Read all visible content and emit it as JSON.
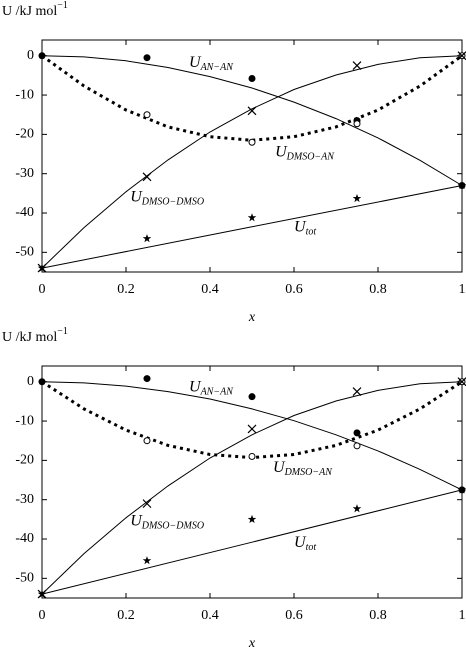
{
  "chart_data": [
    {
      "type": "scatter",
      "ylabel": "U /kJ mol",
      "ylabel_superscript": "−1",
      "xlabel": "x",
      "xlim": [
        0,
        1
      ],
      "ylim": [
        -55,
        4
      ],
      "xticks": [
        0,
        0.2,
        0.4,
        0.6,
        0.8,
        1
      ],
      "yticks": [
        0,
        -10,
        -20,
        -30,
        -40,
        -50
      ],
      "series": [
        {
          "name": "U",
          "subscript": "AN−AN",
          "marker": "filled-circle",
          "line": "solid",
          "color": "#000000",
          "x": [
            0,
            0.25,
            0.5,
            0.75,
            1
          ],
          "values": [
            0,
            -0.5,
            -5.8,
            -16.5,
            -33
          ],
          "fit_x": [
            0,
            0.1,
            0.2,
            0.3,
            0.4,
            0.5,
            0.6,
            0.7,
            0.8,
            0.9,
            1
          ],
          "fit_values": [
            0,
            -0.3,
            -1.3,
            -3,
            -5.3,
            -8.2,
            -11.8,
            -16,
            -20.9,
            -26.6,
            -33
          ]
        },
        {
          "name": "U",
          "subscript": "DMSO−AN",
          "marker": "open-circle",
          "line": "dotted",
          "color": "#000000",
          "x": [
            0.25,
            0.5,
            0.75,
            1
          ],
          "values": [
            -15,
            -22,
            -17.3,
            0
          ],
          "fit_x": [
            0,
            0.1,
            0.2,
            0.3,
            0.4,
            0.5,
            0.6,
            0.7,
            0.8,
            0.9,
            1
          ],
          "fit_values": [
            0,
            -7.7,
            -13.8,
            -18.1,
            -20.6,
            -21.5,
            -20.6,
            -18.1,
            -13.8,
            -7.7,
            0
          ]
        },
        {
          "name": "U",
          "subscript": "DMSO−DMSO",
          "marker": "cross",
          "line": "solid",
          "color": "#000000",
          "x": [
            0,
            0.25,
            0.5,
            0.75,
            1
          ],
          "values": [
            -54,
            -30.8,
            -14,
            -2.5,
            0
          ],
          "fit_x": [
            0,
            0.1,
            0.2,
            0.3,
            0.4,
            0.5,
            0.6,
            0.7,
            0.8,
            0.9,
            1
          ],
          "fit_values": [
            -54,
            -43.7,
            -34.6,
            -26.5,
            -19.4,
            -13.5,
            -8.6,
            -4.9,
            -2.2,
            -0.5,
            0
          ]
        },
        {
          "name": "U",
          "subscript": "tot",
          "marker": "star",
          "line": "solid",
          "color": "#000000",
          "x": [
            0,
            0.25,
            0.5,
            0.75,
            1
          ],
          "values": [
            -54,
            -46.5,
            -41.2,
            -36.3,
            -33
          ],
          "fit_x": [
            0,
            0.5,
            1
          ],
          "fit_values": [
            -54,
            -43.5,
            -33
          ]
        }
      ]
    },
    {
      "type": "scatter",
      "ylabel": "U /kJ mol",
      "ylabel_superscript": "−1",
      "xlabel": "x",
      "xlim": [
        0,
        1
      ],
      "ylim": [
        -55,
        4
      ],
      "xticks": [
        0,
        0.2,
        0.4,
        0.6,
        0.8,
        1
      ],
      "yticks": [
        0,
        -10,
        -20,
        -30,
        -40,
        -50
      ],
      "series": [
        {
          "name": "U",
          "subscript": "AN−AN",
          "marker": "filled-circle",
          "line": "solid",
          "color": "#000000",
          "x": [
            0,
            0.25,
            0.5,
            0.75,
            1
          ],
          "values": [
            0,
            0.8,
            -3.8,
            -13,
            -27.5
          ],
          "fit_x": [
            0,
            0.1,
            0.2,
            0.3,
            0.4,
            0.5,
            0.6,
            0.7,
            0.8,
            0.9,
            1
          ],
          "fit_values": [
            0,
            -0.3,
            -1.1,
            -2.5,
            -4.4,
            -6.9,
            -9.9,
            -13.5,
            -17.6,
            -22.3,
            -27.5
          ]
        },
        {
          "name": "U",
          "subscript": "DMSO−AN",
          "marker": "open-circle",
          "line": "dotted",
          "color": "#000000",
          "x": [
            0.25,
            0.5,
            0.75,
            1
          ],
          "values": [
            -15,
            -19,
            -16.3,
            0
          ],
          "fit_x": [
            0,
            0.1,
            0.2,
            0.3,
            0.4,
            0.5,
            0.6,
            0.7,
            0.8,
            0.9,
            1
          ],
          "fit_values": [
            0,
            -6.9,
            -12.3,
            -16.2,
            -18.5,
            -19.3,
            -18.5,
            -16.2,
            -12.3,
            -6.9,
            0
          ]
        },
        {
          "name": "U",
          "subscript": "DMSO−DMSO",
          "marker": "cross",
          "line": "solid",
          "color": "#000000",
          "x": [
            0,
            0.25,
            0.5,
            0.75,
            1
          ],
          "values": [
            -54,
            -31,
            -12,
            -2.5,
            0
          ],
          "fit_x": [
            0,
            0.1,
            0.2,
            0.3,
            0.4,
            0.5,
            0.6,
            0.7,
            0.8,
            0.9,
            1
          ],
          "fit_values": [
            -54,
            -43.7,
            -34.6,
            -26.5,
            -19.4,
            -13.5,
            -8.6,
            -4.9,
            -2.2,
            -0.5,
            0
          ]
        },
        {
          "name": "U",
          "subscript": "tot",
          "marker": "star",
          "line": "solid",
          "color": "#000000",
          "x": [
            0,
            0.25,
            0.5,
            0.75,
            1
          ],
          "values": [
            -54,
            -45.5,
            -35,
            -32.3,
            -27.5
          ],
          "fit_x": [
            0,
            0.5,
            1
          ],
          "fit_values": [
            -54,
            -40.8,
            -27.5
          ]
        }
      ]
    }
  ]
}
